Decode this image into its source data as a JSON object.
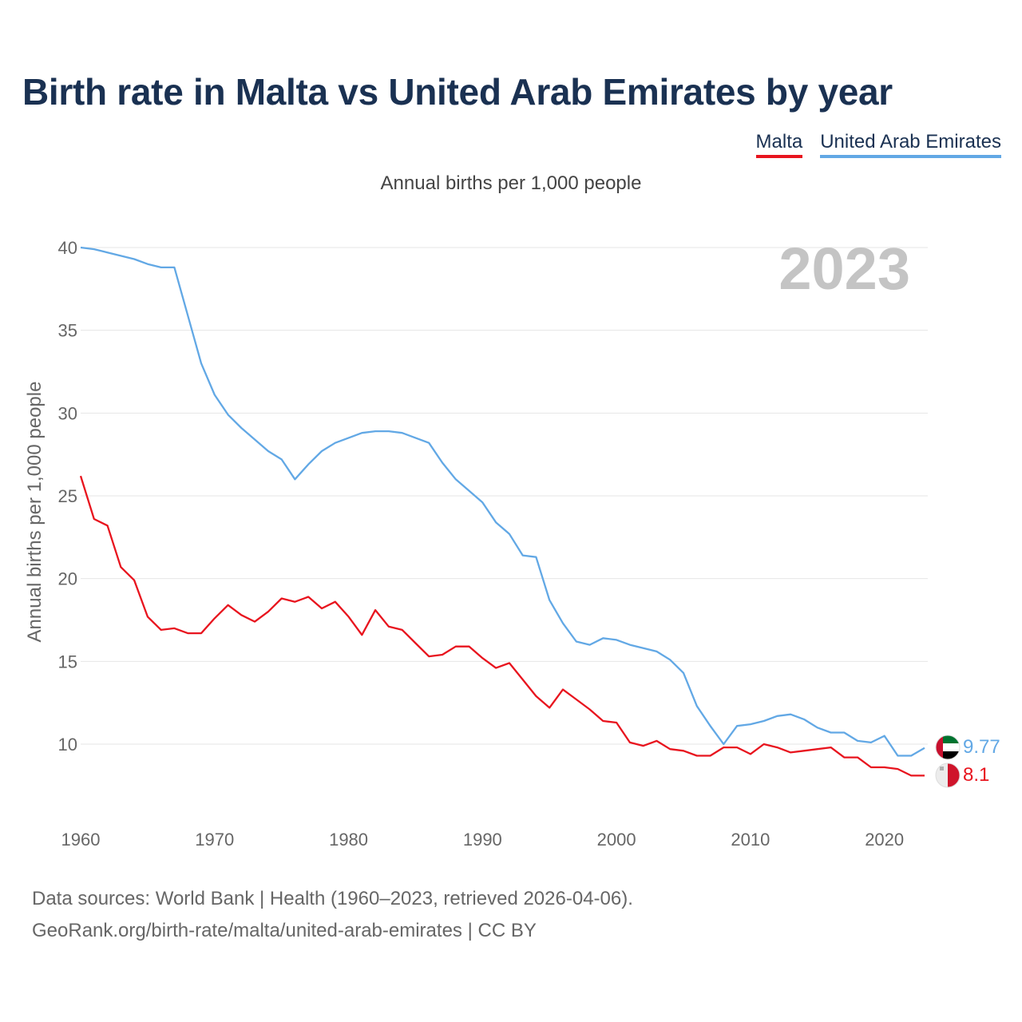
{
  "title": "Birth rate in Malta vs United Arab Emirates by year",
  "subtitle": "Annual births per 1,000 people",
  "legend": [
    {
      "name": "Malta",
      "color": "#e8141e"
    },
    {
      "name": "United Arab Emirates",
      "color": "#62a8e5"
    }
  ],
  "year_label": "2023",
  "source": {
    "line1": "Data sources: World Bank | Health (1960–2023, retrieved 2026-04-06).",
    "line2": "GeoRank.org/birth-rate/malta/united-arab-emirates | CC BY"
  },
  "chart_data": {
    "type": "line",
    "title": "Birth rate in Malta vs United Arab Emirates by year",
    "xlabel": "",
    "ylabel": "Annual births per 1,000 people",
    "xlim": [
      1960,
      2023
    ],
    "ylim": [
      6.5,
      40
    ],
    "x_ticks": [
      1960,
      1970,
      1980,
      1990,
      2000,
      2010,
      2020
    ],
    "y_ticks": [
      10,
      15,
      20,
      25,
      30,
      35,
      40
    ],
    "grid": true,
    "x": [
      1960,
      1961,
      1962,
      1963,
      1964,
      1965,
      1966,
      1967,
      1968,
      1969,
      1970,
      1971,
      1972,
      1973,
      1974,
      1975,
      1976,
      1977,
      1978,
      1979,
      1980,
      1981,
      1982,
      1983,
      1984,
      1985,
      1986,
      1987,
      1988,
      1989,
      1990,
      1991,
      1992,
      1993,
      1994,
      1995,
      1996,
      1997,
      1998,
      1999,
      2000,
      2001,
      2002,
      2003,
      2004,
      2005,
      2006,
      2007,
      2008,
      2009,
      2010,
      2011,
      2012,
      2013,
      2014,
      2015,
      2016,
      2017,
      2018,
      2019,
      2020,
      2021,
      2022,
      2023
    ],
    "series": [
      {
        "name": "Malta",
        "color": "#e8141e",
        "end_label": "8.1",
        "values": [
          26.2,
          23.6,
          23.2,
          20.7,
          19.9,
          17.7,
          16.9,
          17.0,
          16.7,
          16.7,
          17.6,
          18.4,
          17.8,
          17.4,
          18.0,
          18.8,
          18.6,
          18.9,
          18.2,
          18.6,
          17.7,
          16.6,
          18.1,
          17.1,
          16.9,
          16.1,
          15.3,
          15.4,
          15.9,
          15.9,
          15.2,
          14.6,
          14.9,
          13.9,
          12.9,
          12.2,
          13.3,
          12.7,
          12.1,
          11.4,
          11.3,
          10.1,
          9.9,
          10.2,
          9.7,
          9.6,
          9.3,
          9.3,
          9.8,
          9.8,
          9.4,
          10.0,
          9.8,
          9.5,
          9.6,
          9.7,
          9.8,
          9.2,
          9.2,
          8.6,
          8.6,
          8.5,
          8.1,
          8.1
        ]
      },
      {
        "name": "United Arab Emirates",
        "color": "#62a8e5",
        "end_label": "9.77",
        "values": [
          40.0,
          39.9,
          39.7,
          39.5,
          39.3,
          39.0,
          38.8,
          38.8,
          35.9,
          33.0,
          31.1,
          29.9,
          29.1,
          28.4,
          27.7,
          27.2,
          26.0,
          26.9,
          27.7,
          28.2,
          28.5,
          28.8,
          28.9,
          28.9,
          28.8,
          28.5,
          28.2,
          27.0,
          26.0,
          25.3,
          24.6,
          23.4,
          22.7,
          21.4,
          21.3,
          18.7,
          17.3,
          16.2,
          16.0,
          16.4,
          16.3,
          16.0,
          15.8,
          15.6,
          15.1,
          14.3,
          12.3,
          11.1,
          10.0,
          11.1,
          11.2,
          11.4,
          11.7,
          11.8,
          11.5,
          11.0,
          10.7,
          10.7,
          10.2,
          10.1,
          10.5,
          9.3,
          9.3,
          9.77
        ]
      }
    ]
  }
}
